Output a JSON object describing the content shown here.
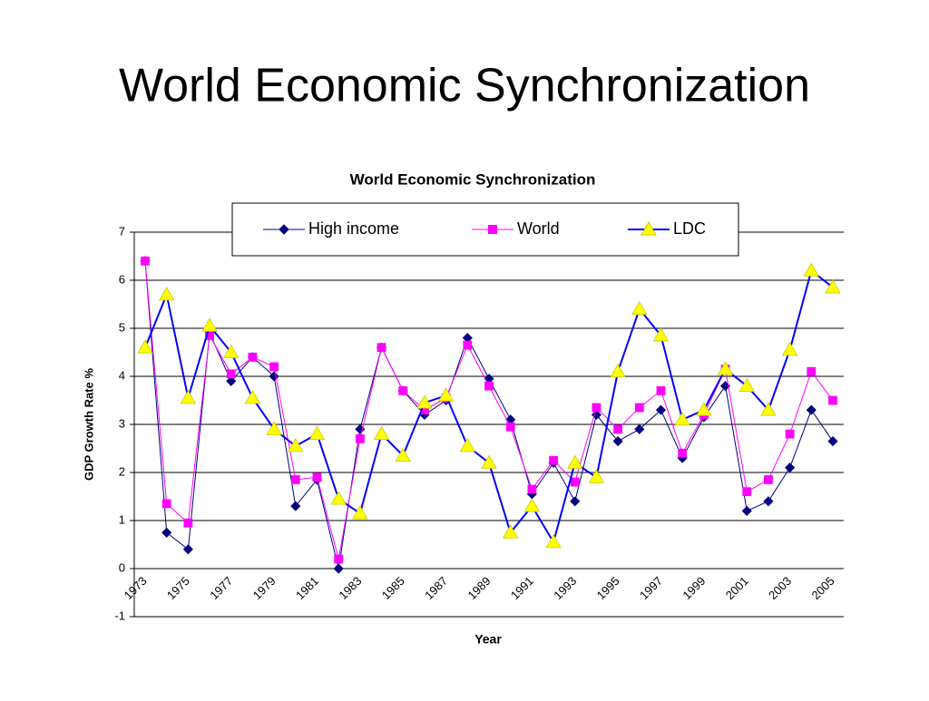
{
  "slide": {
    "title": "World Economic Synchronization"
  },
  "chart_data": {
    "type": "line",
    "title": "World Economic Synchronization",
    "xlabel": "Year",
    "ylabel": "GDP Growth Rate %",
    "categories": [
      "1973",
      null,
      "1975",
      null,
      "1977",
      null,
      "1979",
      null,
      "1981",
      null,
      "1983",
      null,
      "1985",
      null,
      "1987",
      null,
      "1989",
      null,
      "1991",
      null,
      "1993",
      null,
      "1995",
      null,
      "1997",
      null,
      "1999",
      null,
      "2001",
      null,
      "2003",
      null,
      "2005"
    ],
    "series": [
      {
        "name": "High income",
        "color": "#000080",
        "marker": "diamond",
        "marker_color": "#000080",
        "values": [
          6.4,
          0.75,
          0.4,
          4.9,
          3.9,
          4.4,
          4.0,
          1.3,
          1.85,
          0.0,
          2.9,
          4.6,
          3.7,
          3.2,
          3.5,
          4.8,
          3.95,
          3.1,
          1.55,
          2.2,
          1.4,
          3.2,
          2.65,
          2.9,
          3.3,
          2.3,
          3.15,
          3.8,
          1.2,
          1.4,
          2.1,
          3.3,
          2.65
        ]
      },
      {
        "name": "World",
        "color": "#ff00ff",
        "marker": "square",
        "marker_color": "#ff00ff",
        "values": [
          6.4,
          1.35,
          0.95,
          4.85,
          4.05,
          4.4,
          4.2,
          1.85,
          1.9,
          0.2,
          2.7,
          4.6,
          3.7,
          3.3,
          3.55,
          4.65,
          3.8,
          2.95,
          1.65,
          2.25,
          1.8,
          3.35,
          2.9,
          3.35,
          3.7,
          2.4,
          3.2,
          4.15,
          1.6,
          1.85,
          2.8,
          4.1,
          3.5
        ]
      },
      {
        "name": "LDC",
        "color": "#0000ff",
        "marker": "triangle",
        "marker_color": "#ffff00",
        "values": [
          4.6,
          5.7,
          3.55,
          5.05,
          4.5,
          3.55,
          2.9,
          2.55,
          2.8,
          1.45,
          1.15,
          2.8,
          2.35,
          3.45,
          3.6,
          2.55,
          2.2,
          0.75,
          1.3,
          0.55,
          2.2,
          1.9,
          4.1,
          5.4,
          4.85,
          3.1,
          3.3,
          4.15,
          3.8,
          3.3,
          4.55,
          6.2,
          5.85
        ]
      }
    ],
    "ylim": [
      -1,
      7
    ],
    "yticks": [
      -1,
      0,
      1,
      2,
      3,
      4,
      5,
      6,
      7
    ],
    "grid": true,
    "legend": "top"
  }
}
